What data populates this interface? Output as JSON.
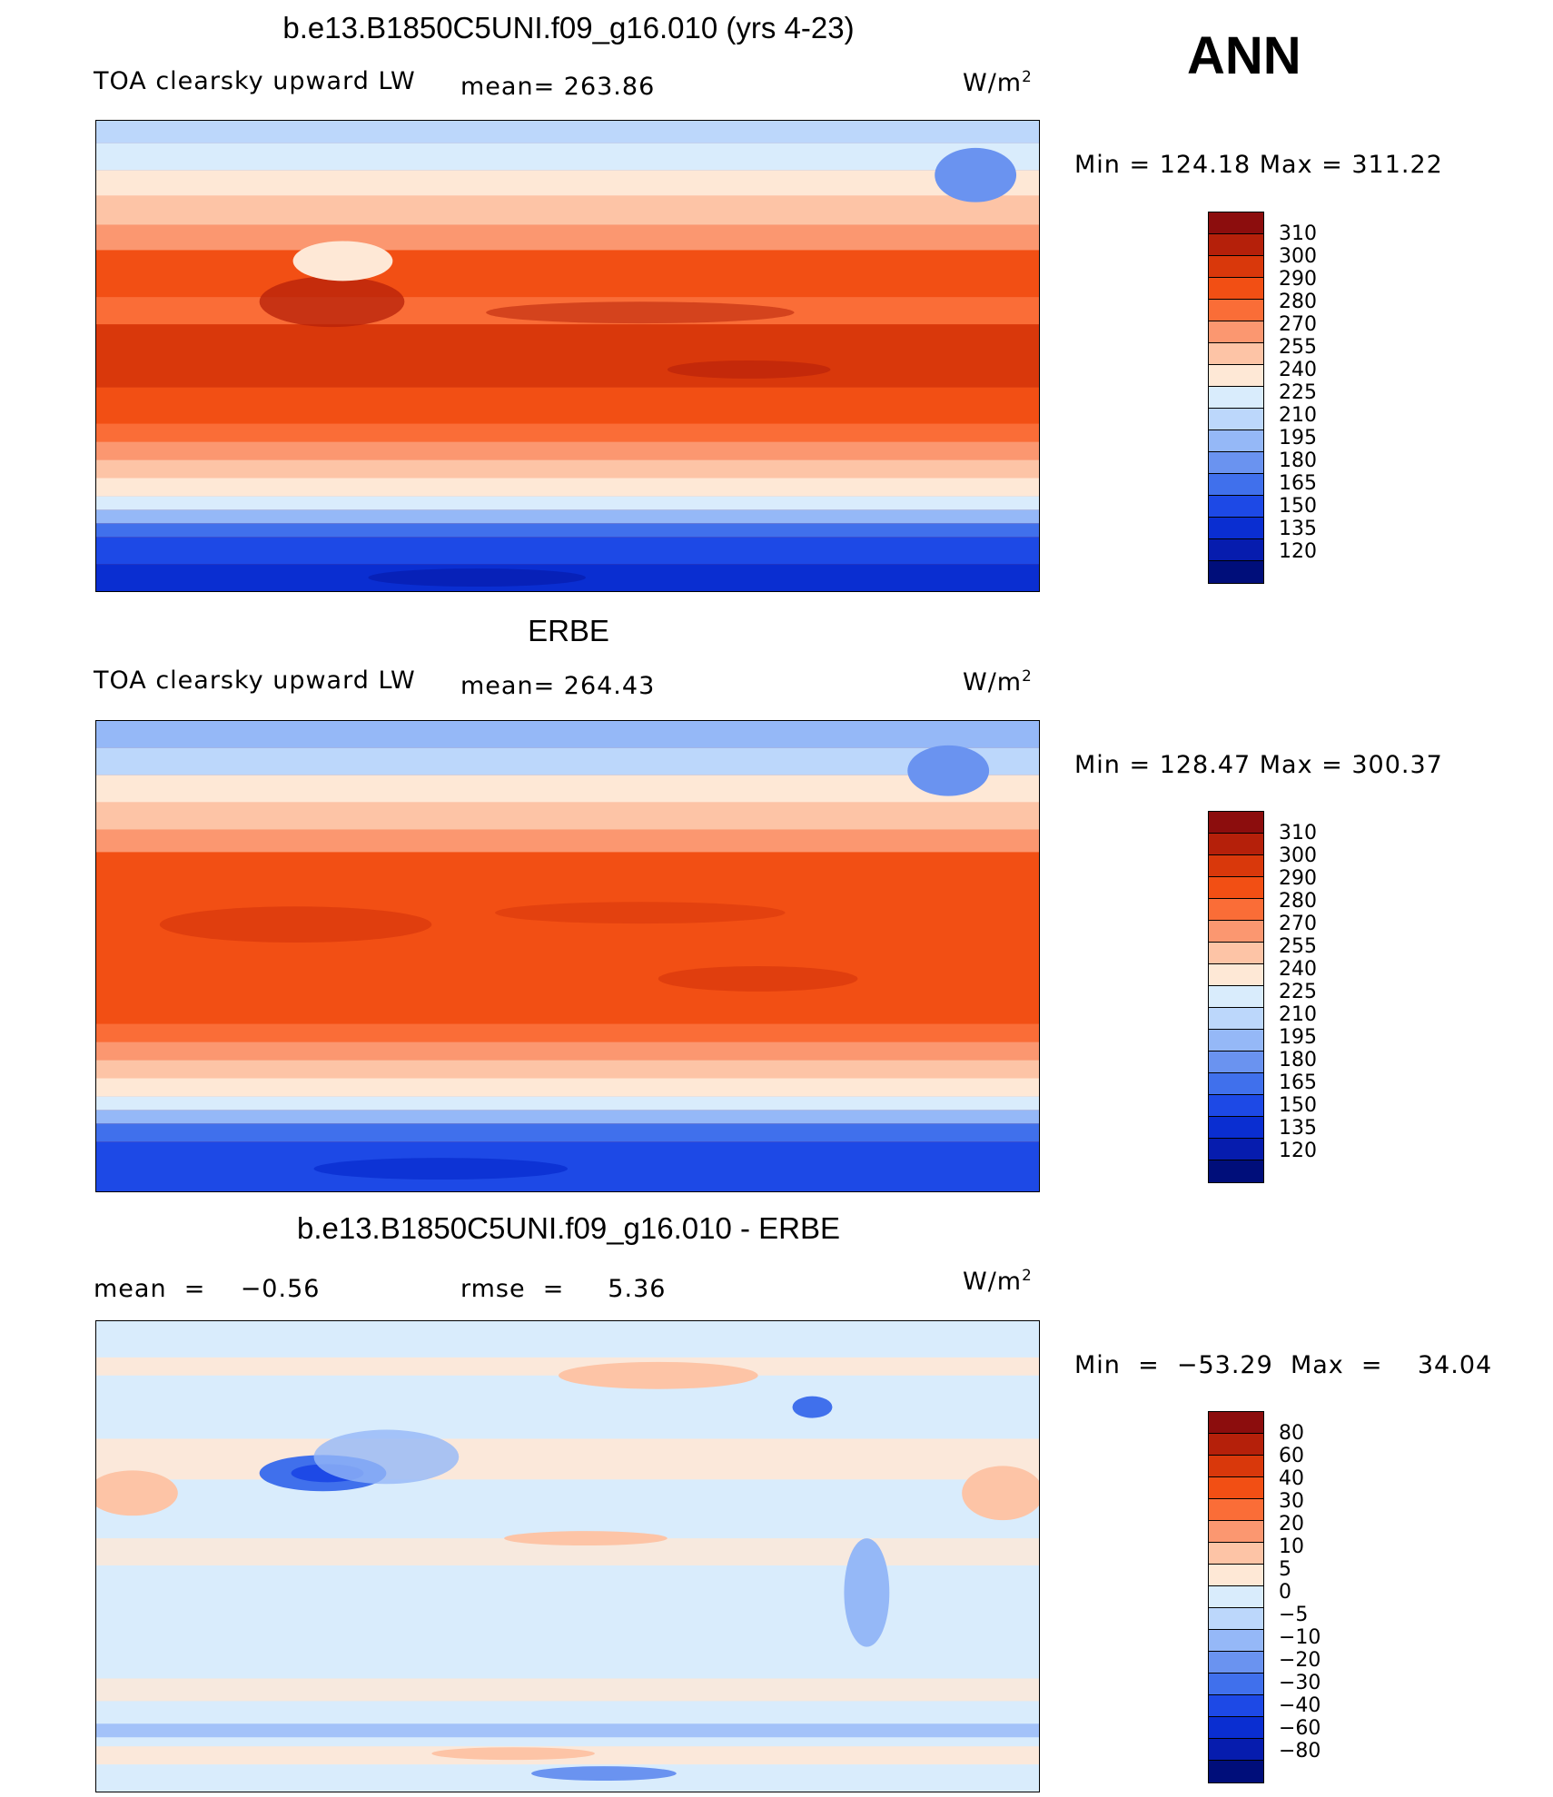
{
  "season": "ANN",
  "panels": [
    {
      "title": "b.e13.B1850C5UNI.f09_g16.010 (yrs 4-23)",
      "left_label": "TOA clearsky upward LW",
      "mid_label": "mean= 263.86",
      "units": "W/m",
      "units_sup": "2",
      "minmax": "Min  =  124.18  Max  =  311.22",
      "colorbar_labels": [
        "310",
        "300",
        "290",
        "280",
        "270",
        "255",
        "240",
        "225",
        "210",
        "195",
        "180",
        "165",
        "150",
        "135",
        "120"
      ]
    },
    {
      "title": "ERBE",
      "left_label": "TOA clearsky upward LW",
      "mid_label": "mean= 264.43",
      "units": "W/m",
      "units_sup": "2",
      "minmax": "Min  =  128.47  Max  =  300.37",
      "colorbar_labels": [
        "310",
        "300",
        "290",
        "280",
        "270",
        "255",
        "240",
        "225",
        "210",
        "195",
        "180",
        "165",
        "150",
        "135",
        "120"
      ]
    },
    {
      "title": "b.e13.B1850C5UNI.f09_g16.010 - ERBE",
      "left_label": "mean  =    −0.56",
      "mid_label": "rmse  =     5.36",
      "units": "W/m",
      "units_sup": "2",
      "minmax": "Min  =  −53.29  Max  =    34.04",
      "colorbar_labels": [
        "80",
        "60",
        "40",
        "30",
        "20",
        "10",
        "5",
        "0",
        "−5",
        "−10",
        "−20",
        "−30",
        "−40",
        "−60",
        "−80"
      ]
    }
  ],
  "colorbar_colors": [
    "#8c0d0d",
    "#b5200a",
    "#d9380b",
    "#f24f14",
    "#fa6d37",
    "#fb9770",
    "#fdc4a6",
    "#fee8d6",
    "#d9ecfc",
    "#bcd7fb",
    "#95b8f7",
    "#6a93f0",
    "#4070ec",
    "#1d49e6",
    "#0a2ed1",
    "#061cae",
    "#000e7a"
  ],
  "chart_data": [
    {
      "type": "heatmap",
      "title": "b.e13.B1850C5UNI.f09_g16.010 (yrs 4-23)",
      "variable": "TOA clearsky upward LW",
      "units": "W/m2",
      "mean": 263.86,
      "min": 124.18,
      "max": 311.22,
      "contour_levels": [
        120,
        135,
        150,
        165,
        180,
        195,
        210,
        225,
        240,
        255,
        270,
        280,
        290,
        300,
        310
      ],
      "zonal_pattern_lat": [
        90,
        75,
        60,
        45,
        30,
        15,
        0,
        -15,
        -30,
        -45,
        -60,
        -75,
        -90
      ],
      "zonal_pattern_value": [
        175,
        200,
        225,
        250,
        275,
        295,
        285,
        295,
        275,
        245,
        205,
        160,
        140
      ]
    },
    {
      "type": "heatmap",
      "title": "ERBE",
      "variable": "TOA clearsky upward LW",
      "units": "W/m2",
      "mean": 264.43,
      "min": 128.47,
      "max": 300.37,
      "contour_levels": [
        120,
        135,
        150,
        165,
        180,
        195,
        210,
        225,
        240,
        255,
        270,
        280,
        290,
        300,
        310
      ],
      "zonal_pattern_lat": [
        90,
        75,
        60,
        45,
        30,
        15,
        0,
        -15,
        -30,
        -45,
        -60,
        -75,
        -90
      ],
      "zonal_pattern_value": [
        180,
        200,
        225,
        252,
        280,
        292,
        285,
        292,
        275,
        245,
        205,
        160,
        145
      ]
    },
    {
      "type": "heatmap",
      "title": "b.e13.B1850C5UNI.f09_g16.010 - ERBE",
      "units": "W/m2",
      "mean": -0.56,
      "rmse": 5.36,
      "min": -53.29,
      "max": 34.04,
      "contour_levels": [
        -80,
        -60,
        -40,
        -30,
        -20,
        -10,
        -5,
        0,
        5,
        10,
        20,
        30,
        40,
        60,
        80
      ]
    }
  ]
}
